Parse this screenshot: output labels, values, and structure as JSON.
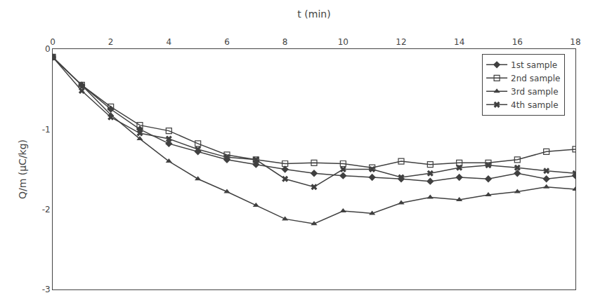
{
  "chart_data": {
    "type": "line",
    "xlabel": "t (min)",
    "ylabel": "Q/m (μC/kg)",
    "x": [
      0,
      1,
      2,
      3,
      4,
      5,
      6,
      7,
      8,
      9,
      10,
      11,
      12,
      13,
      14,
      15,
      16,
      17,
      18
    ],
    "series": [
      {
        "name": "1st sample",
        "color": "#404040",
        "marker": "diamond",
        "values": [
          -0.1,
          -0.45,
          -0.75,
          -1.0,
          -1.18,
          -1.28,
          -1.38,
          -1.44,
          -1.5,
          -1.55,
          -1.58,
          -1.6,
          -1.62,
          -1.65,
          -1.6,
          -1.62,
          -1.55,
          -1.62,
          -1.58
        ]
      },
      {
        "name": "2nd sample",
        "color": "#404040",
        "marker": "square-open",
        "values": [
          -0.1,
          -0.45,
          -0.72,
          -0.95,
          -1.02,
          -1.18,
          -1.32,
          -1.38,
          -1.43,
          -1.42,
          -1.43,
          -1.48,
          -1.4,
          -1.44,
          -1.42,
          -1.42,
          -1.38,
          -1.28,
          -1.25
        ]
      },
      {
        "name": "3rd sample",
        "color": "#404040",
        "marker": "triangle-up",
        "values": [
          -0.1,
          -0.45,
          -0.82,
          -1.12,
          -1.4,
          -1.62,
          -1.78,
          -1.95,
          -2.12,
          -2.18,
          -2.02,
          -2.05,
          -1.92,
          -1.85,
          -1.88,
          -1.82,
          -1.78,
          -1.72,
          -1.75
        ]
      },
      {
        "name": "4th sample",
        "color": "#404040",
        "marker": "x",
        "values": [
          -0.1,
          -0.52,
          -0.85,
          -1.05,
          -1.12,
          -1.25,
          -1.35,
          -1.38,
          -1.62,
          -1.72,
          -1.5,
          -1.5,
          -1.6,
          -1.55,
          -1.48,
          -1.45,
          -1.48,
          -1.52,
          -1.55
        ]
      }
    ],
    "xlim": [
      0,
      18
    ],
    "ylim": [
      -3,
      0
    ],
    "xticks": [
      0,
      2,
      4,
      6,
      8,
      10,
      12,
      14,
      16,
      18
    ],
    "yticks": [
      0,
      -1,
      -2,
      -3
    ],
    "grid": false,
    "legend": "upper right"
  }
}
